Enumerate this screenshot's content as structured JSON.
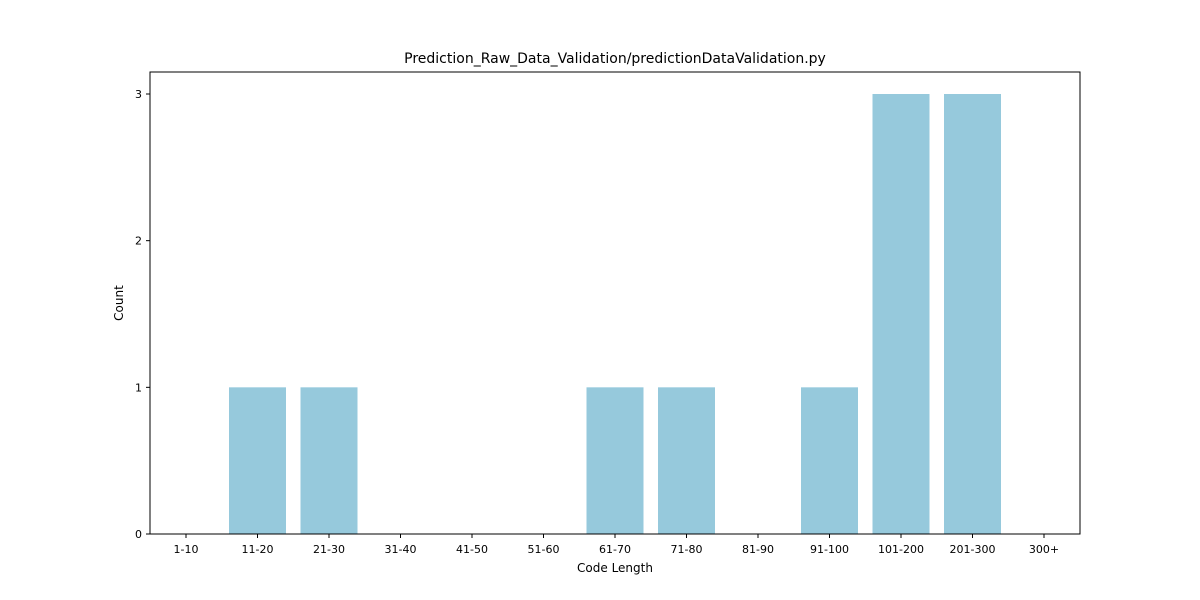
{
  "chart_data": {
    "type": "bar",
    "title": "Prediction_Raw_Data_Validation/predictionDataValidation.py",
    "xlabel": "Code Length",
    "ylabel": "Count",
    "categories": [
      "1-10",
      "11-20",
      "21-30",
      "31-40",
      "41-50",
      "51-60",
      "61-70",
      "71-80",
      "81-90",
      "91-100",
      "101-200",
      "201-300",
      "300+"
    ],
    "values": [
      0,
      1,
      1,
      0,
      0,
      0,
      1,
      1,
      0,
      1,
      3,
      3,
      0
    ],
    "ylim": [
      0,
      3.15
    ],
    "yticks": [
      0,
      1,
      2,
      3
    ],
    "grid": false,
    "bar_color": "#96c9dc"
  }
}
